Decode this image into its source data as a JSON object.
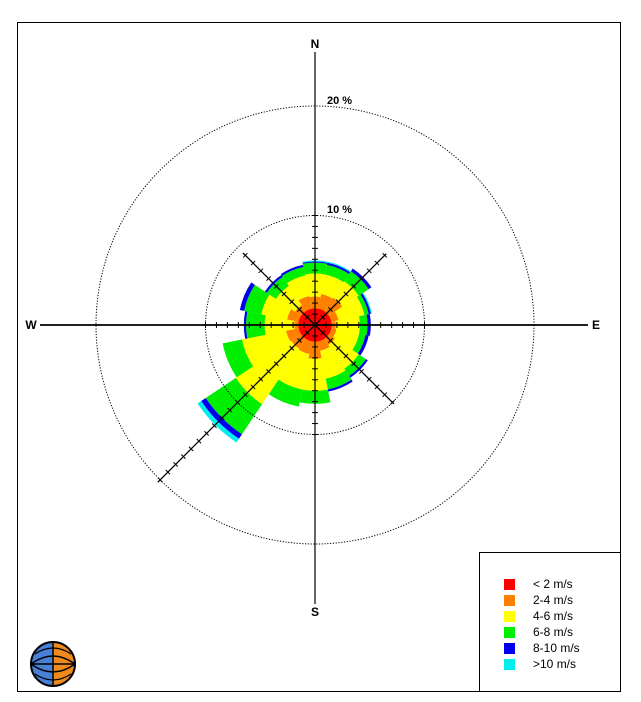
{
  "chart_data": {
    "type": "wind-rose",
    "directions_deg": [
      0,
      22.5,
      45,
      67.5,
      90,
      112.5,
      135,
      157.5,
      180,
      202.5,
      225,
      247.5,
      270,
      292.5,
      315,
      337.5
    ],
    "cardinal_labels": {
      "north": "N",
      "east": "E",
      "south": "S",
      "west": "W"
    },
    "ring_labels": [
      "10 %",
      "20 %"
    ],
    "ring_values": [
      10,
      20
    ],
    "series": [
      {
        "name": "< 2 m/s",
        "color": "#ff0000",
        "values": [
          0.8,
          0.8,
          0.8,
          0.8,
          0.8,
          0.8,
          0.8,
          0.8,
          0.8,
          0.8,
          0.8,
          0.8,
          0.8,
          0.8,
          0.8,
          0.8
        ]
      },
      {
        "name": "2-4 m/s",
        "color": "#ff8000",
        "values": [
          1.8,
          2.1,
          2.2,
          1.4,
          1.1,
          1.2,
          1.4,
          1.6,
          2.3,
          1.9,
          1.8,
          1.9,
          1.1,
          1.8,
          1.4,
          1.9
        ]
      },
      {
        "name": "4-6 m/s",
        "color": "#ffff00",
        "values": [
          2.1,
          1.8,
          1.8,
          2.4,
          2.2,
          2.1,
          2.6,
          2.6,
          2.9,
          3.3,
          6.1,
          4.1,
          2.7,
          2.4,
          2.1,
          1.9
        ]
      },
      {
        "name": "6-8 m/s",
        "color": "#00ee00",
        "values": [
          1.0,
          0.9,
          1.1,
          0.4,
          0.7,
          0.6,
          0.8,
          1.0,
          1.2,
          1.6,
          3.3,
          1.8,
          1.7,
          1.6,
          1.0,
          0.8
        ]
      },
      {
        "name": "8-10 m/s",
        "color": "#0000ee",
        "values": [
          0.1,
          0.2,
          0.3,
          0.2,
          0.3,
          0.3,
          0.2,
          0.2,
          0.0,
          0.0,
          0.5,
          0.0,
          0.2,
          0.4,
          0.2,
          0.2
        ]
      },
      {
        "name": ">10 m/s",
        "color": "#00eeee",
        "values": [
          0.1,
          0.1,
          0.0,
          0.1,
          0.0,
          0.0,
          0.0,
          0.0,
          0.0,
          0.0,
          0.4,
          0.0,
          0.0,
          0.0,
          0.0,
          0.0
        ]
      }
    ]
  }
}
